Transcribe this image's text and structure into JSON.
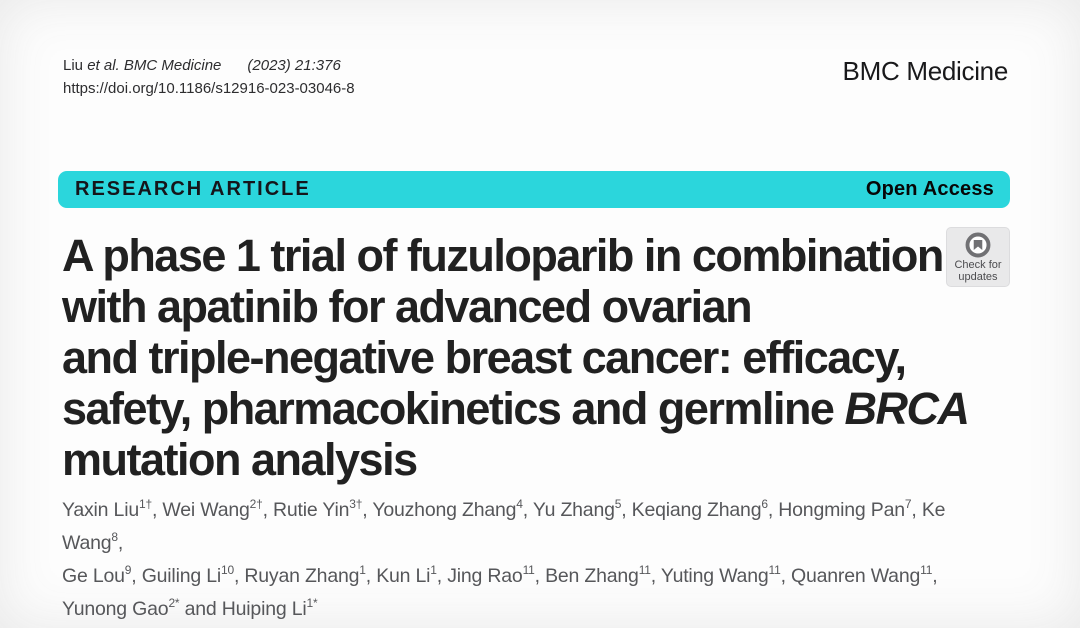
{
  "header": {
    "citation": {
      "authors": "Liu ",
      "source_italic": "et al. BMC Medicine",
      "issue_italic": "(2023) 21:376",
      "doi": "https://doi.org/10.1186/s12916-023-03046-8"
    },
    "journal_name": "BMC Medicine"
  },
  "banner": {
    "article_type": "RESEARCH ARTICLE",
    "access_label": "Open Access",
    "background_color": "#2bd6dc"
  },
  "article": {
    "title_lines": [
      {
        "text": "A phase 1 trial of fuzuloparib in combination",
        "italic": ""
      },
      {
        "text": "with apatinib for advanced ovarian",
        "italic": ""
      },
      {
        "text": "and triple-negative breast cancer: efficacy,",
        "italic": ""
      },
      {
        "text": "safety, pharmacokinetics and germline ",
        "italic": "BRCA"
      },
      {
        "text": "mutation analysis",
        "italic": ""
      }
    ],
    "authors": [
      {
        "name": "Yaxin Liu",
        "sup": "1†",
        "sep": ", "
      },
      {
        "name": "Wei Wang",
        "sup": "2†",
        "sep": ", "
      },
      {
        "name": "Rutie Yin",
        "sup": "3†",
        "sep": ", "
      },
      {
        "name": "Youzhong Zhang",
        "sup": "4",
        "sep": ", "
      },
      {
        "name": "Yu Zhang",
        "sup": "5",
        "sep": ", "
      },
      {
        "name": "Keqiang Zhang",
        "sup": "6",
        "sep": ", "
      },
      {
        "name": "Hongming Pan",
        "sup": "7",
        "sep": ", "
      },
      {
        "name": "Ke Wang",
        "sup": "8",
        "sep": ",",
        "break_after": true
      },
      {
        "name": "Ge Lou",
        "sup": "9",
        "sep": ", "
      },
      {
        "name": "Guiling Li",
        "sup": "10",
        "sep": ", "
      },
      {
        "name": "Ruyan Zhang",
        "sup": "1",
        "sep": ", "
      },
      {
        "name": "Kun Li",
        "sup": "1",
        "sep": ", "
      },
      {
        "name": "Jing Rao",
        "sup": "11",
        "sep": ", "
      },
      {
        "name": "Ben Zhang",
        "sup": "11",
        "sep": ", "
      },
      {
        "name": "Yuting Wang",
        "sup": "11",
        "sep": ", "
      },
      {
        "name": "Quanren Wang",
        "sup": "11",
        "sep": ",",
        "break_after": true
      },
      {
        "name": "Yunong Gao",
        "sup": "2*",
        "sep": " and "
      },
      {
        "name": "Huiping Li",
        "sup": "1*",
        "sep": ""
      }
    ]
  },
  "check_badge": {
    "label_line1": "Check for",
    "label_line2": "updates",
    "icon": "crossmark-circle-icon",
    "colors": {
      "background": "#e9e9ea",
      "logo": "#717174",
      "text": "#4c4c4f"
    }
  }
}
